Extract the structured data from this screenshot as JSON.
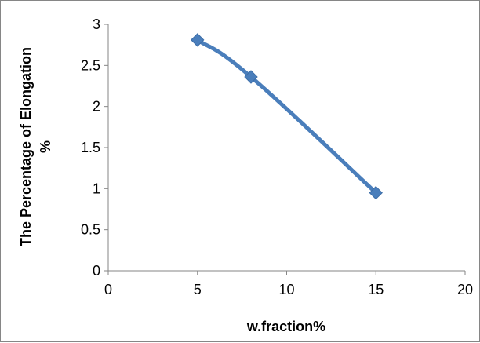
{
  "chart_data": {
    "type": "line",
    "title": "",
    "xlabel": "w.fraction%",
    "ylabel_lines": [
      "The Percentage of Elongation",
      "%"
    ],
    "xlim": [
      0,
      20
    ],
    "ylim": [
      0,
      3
    ],
    "xticks": [
      0,
      5,
      10,
      15,
      20
    ],
    "yticks": [
      0,
      0.5,
      1,
      1.5,
      2,
      2.5,
      3
    ],
    "xtick_labels": [
      "0",
      "5",
      "10",
      "15",
      "20"
    ],
    "ytick_labels": [
      "0",
      "0.5",
      "1",
      "1.5",
      "2",
      "2.5",
      "3"
    ],
    "grid": false,
    "legend": "none",
    "series": [
      {
        "x": [
          5,
          8,
          15
        ],
        "values": [
          2.81,
          2.36,
          0.95
        ],
        "color": "#4a7ebb",
        "marker": "diamond",
        "smooth": true
      }
    ]
  }
}
